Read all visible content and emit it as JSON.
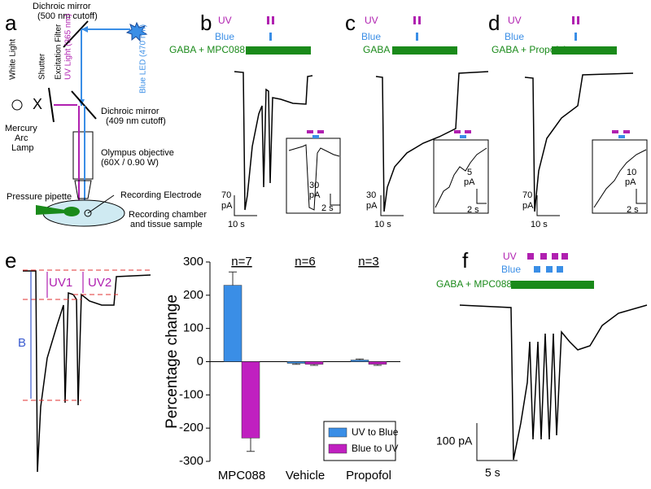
{
  "panel_labels": [
    "a",
    "b",
    "c",
    "d",
    "e",
    "f"
  ],
  "setup": {
    "dichroic_top": [
      "Dichroic mirror",
      "(500 nm cutoff)"
    ],
    "excitation_filter": "Excitation Filter",
    "uv_light": "UV Light (365 nm)",
    "shutter": "Shutter",
    "white_light": "White Light",
    "blue_led": "Blue LED (470 nm)",
    "x_mark": "X",
    "dichroic_mid": [
      "Dichroic mirror",
      "(409 nm cutoff)"
    ],
    "lamp": [
      "Mercury",
      "Arc",
      "Lamp"
    ],
    "objective": [
      "Olympus objective",
      "(60X / 0.90 W)"
    ],
    "pipette": "Pressure pipette",
    "electrode": "Recording Electrode",
    "chamber": [
      "Recording chamber",
      "and tissue sample"
    ]
  },
  "traces": {
    "b": {
      "uv": "UV",
      "blue": "Blue",
      "drug": "GABA + MPC088",
      "amp": [
        "70",
        "pA"
      ],
      "time": "10 s",
      "inset_amp": [
        "30",
        "pA"
      ],
      "inset_time": "2 s"
    },
    "c": {
      "uv": "UV",
      "blue": "Blue",
      "drug": "GABA",
      "amp": [
        "30",
        "pA"
      ],
      "time": "10 s",
      "inset_amp": [
        "5",
        "pA"
      ],
      "inset_time": "2 s"
    },
    "d": {
      "uv": "UV",
      "blue": "Blue",
      "drug": "GABA + Propofol",
      "amp": [
        "70",
        "pA"
      ],
      "time": "10 s",
      "inset_amp": [
        "10",
        "pA"
      ],
      "inset_time": "2 s"
    },
    "e": {
      "uv1": "UV1",
      "uv2": "UV2",
      "b": "B"
    },
    "f": {
      "uv": "UV",
      "blue": "Blue",
      "drug": "GABA + MPC088",
      "amp": "100 pA",
      "time": "5 s"
    }
  },
  "chart_data": {
    "type": "bar",
    "ylabel": "Percentage change",
    "categories": [
      "MPC088",
      "Vehicle",
      "Propofol"
    ],
    "annotations": [
      "n=7",
      "n=6",
      "n=3"
    ],
    "series": [
      {
        "name": "UV to Blue",
        "color": "#3a8ee6",
        "values": [
          230,
          -5,
          5
        ],
        "errors": [
          40,
          3,
          3
        ]
      },
      {
        "name": "Blue to UV",
        "color": "#c020c0",
        "values": [
          -230,
          -8,
          -8
        ],
        "errors": [
          40,
          3,
          3
        ]
      }
    ],
    "ylim": [
      -300,
      300
    ],
    "yticks": [
      -300,
      -200,
      -100,
      0,
      100,
      200,
      300
    ],
    "legend": "lower right"
  }
}
